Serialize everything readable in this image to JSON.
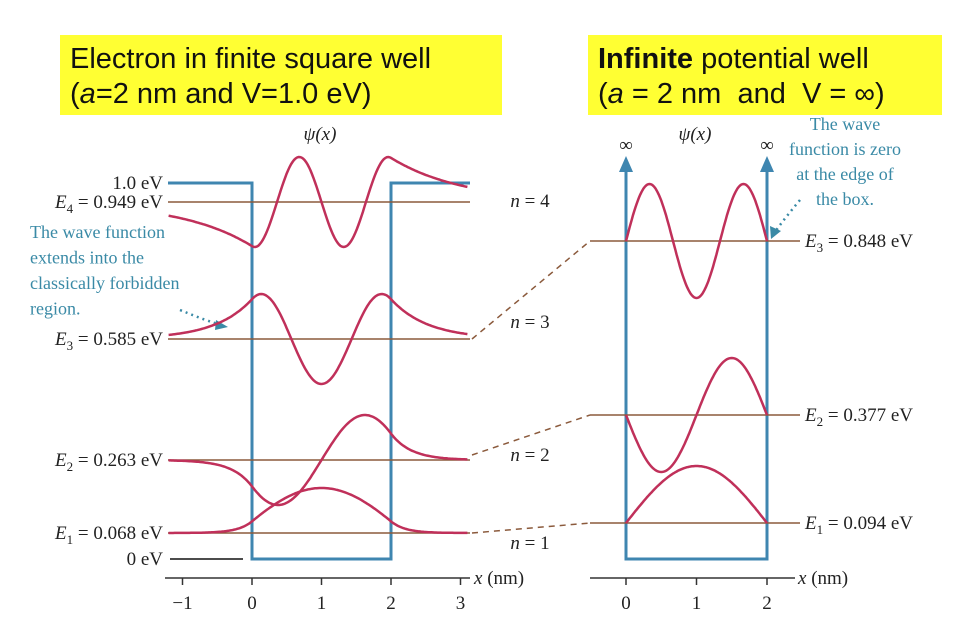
{
  "left": {
    "title": {
      "line1": "Electron in finite square well",
      "line2": [
        "(",
        "a",
        "=2 nm and V=1.0 eV)"
      ]
    },
    "psi_label": "ψ(x)",
    "top_label": "1.0 eV",
    "zero_label": "0 eV",
    "levels": [
      {
        "symbol": "E",
        "sub": "4",
        "rest": " = 0.949 eV"
      },
      {
        "symbol": "E",
        "sub": "3",
        "rest": " = 0.585 eV"
      },
      {
        "symbol": "E",
        "sub": "2",
        "rest": " = 0.263 eV"
      },
      {
        "symbol": "E",
        "sub": "1",
        "rest": " = 0.068 eV"
      }
    ],
    "annotation": [
      "The wave function",
      "extends into the",
      "classically forbidden",
      "region."
    ],
    "axis": {
      "label": [
        "x",
        " (nm)"
      ],
      "ticks": [
        "−1",
        "0",
        "1",
        "2",
        "3"
      ]
    }
  },
  "n_labels": [
    {
      "var": "n",
      "rest": " = 4"
    },
    {
      "var": "n",
      "rest": " = 3"
    },
    {
      "var": "n",
      "rest": " = 2"
    },
    {
      "var": "n",
      "rest": " = 1"
    }
  ],
  "right": {
    "title": {
      "line1": [
        "Infinite",
        " potential well"
      ],
      "line2": [
        "(",
        "a",
        " = 2 nm  and  V = ∞)"
      ]
    },
    "psi_label": "ψ(x)",
    "infinity": [
      "∞",
      "∞"
    ],
    "levels": [
      {
        "symbol": "E",
        "sub": "3",
        "rest": " = 0.848 eV"
      },
      {
        "symbol": "E",
        "sub": "2",
        "rest": " = 0.377 eV"
      },
      {
        "symbol": "E",
        "sub": "1",
        "rest": " = 0.094 eV"
      }
    ],
    "annotation": [
      "The wave",
      "function is zero",
      "at the edge of",
      "the box."
    ],
    "axis": {
      "label": [
        "x",
        " (nm)"
      ],
      "ticks": [
        "0",
        "1",
        "2"
      ]
    }
  }
}
